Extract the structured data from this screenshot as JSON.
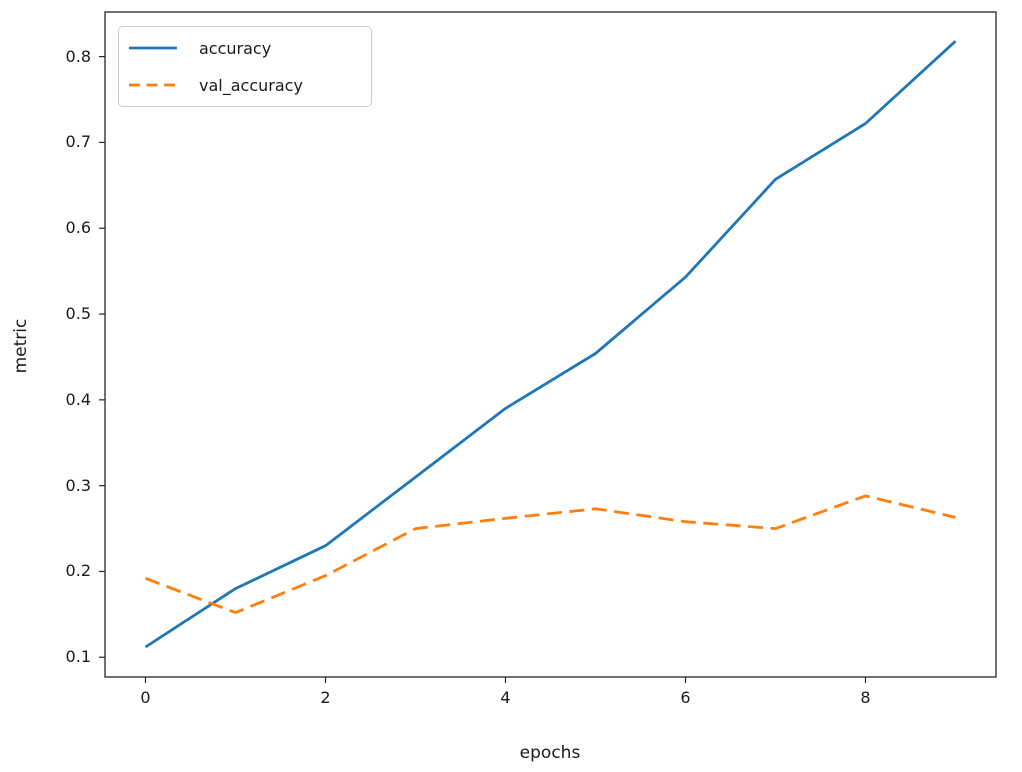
{
  "figure": {
    "background": "#ffffff",
    "text_color": "#1a1a1a",
    "spine_color": "#262626"
  },
  "chart_data": {
    "type": "line",
    "title": "",
    "xlabel": "epochs",
    "ylabel": "metric",
    "x": [
      0,
      1,
      2,
      3,
      4,
      5,
      6,
      7,
      8,
      9
    ],
    "series": [
      {
        "name": "accuracy",
        "color": "#1f77b4",
        "style": "solid",
        "values": [
          0.112,
          0.18,
          0.23,
          0.31,
          0.39,
          0.454,
          0.543,
          0.657,
          0.722,
          0.818
        ]
      },
      {
        "name": "val_accuracy",
        "color": "#ff7f0e",
        "style": "dashed",
        "values": [
          0.192,
          0.152,
          0.195,
          0.25,
          0.262,
          0.273,
          0.258,
          0.25,
          0.288,
          0.263
        ]
      }
    ],
    "xlim": [
      -0.45,
      9.45
    ],
    "ylim": [
      0.077,
      0.852
    ],
    "xticks": [
      0,
      2,
      4,
      6,
      8
    ],
    "xtick_labels": [
      "0",
      "2",
      "4",
      "6",
      "8"
    ],
    "yticks": [
      0.1,
      0.2,
      0.3,
      0.4,
      0.5,
      0.6,
      0.7,
      0.8
    ],
    "ytick_labels": [
      "0.1",
      "0.2",
      "0.3",
      "0.4",
      "0.5",
      "0.6",
      "0.7",
      "0.8"
    ],
    "grid": false,
    "legend_position": "upper left"
  }
}
